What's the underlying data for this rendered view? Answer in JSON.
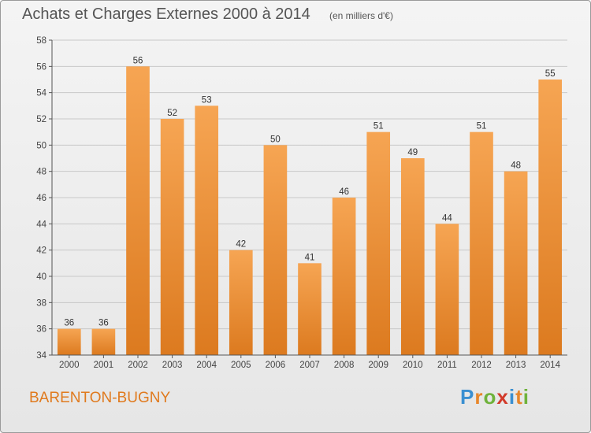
{
  "header": {
    "title": "Achats et Charges Externes 2000 à 2014",
    "subtitle": "(en milliers d'€)"
  },
  "footer": {
    "city": "BARENTON-BUGNY",
    "logo_letters": [
      "P",
      "r",
      "o",
      "x",
      "i",
      "t",
      "i"
    ],
    "logo_colors": [
      "#3a8fd1",
      "#e8862a",
      "#6fb23b",
      "#d23a2a",
      "#3a8fd1",
      "#e8862a",
      "#6fb23b"
    ]
  },
  "colors": {
    "bar_top": "#f6a553",
    "bar_bottom": "#dc7a1f",
    "grid": "#c8c8c8",
    "axis": "#555555"
  },
  "chart_data": {
    "type": "bar",
    "title": "Achats et Charges Externes 2000 à 2014",
    "subtitle": "(en milliers d'€)",
    "xlabel": "",
    "ylabel": "",
    "categories": [
      "2000",
      "2001",
      "2002",
      "2003",
      "2004",
      "2005",
      "2006",
      "2007",
      "2008",
      "2009",
      "2010",
      "2011",
      "2012",
      "2013",
      "2014"
    ],
    "values": [
      36,
      36,
      56,
      52,
      53,
      42,
      50,
      41,
      46,
      51,
      49,
      44,
      51,
      48,
      55
    ],
    "data_labels": [
      "36",
      "36",
      "56",
      "52",
      "53",
      "42",
      "50",
      "41",
      "46",
      "51",
      "49",
      "44",
      "51",
      "48",
      "55"
    ],
    "ylim": [
      34,
      58
    ],
    "yticks": [
      34,
      36,
      38,
      40,
      42,
      44,
      46,
      48,
      50,
      52,
      54,
      56,
      58
    ],
    "grid": true,
    "legend": "none"
  }
}
